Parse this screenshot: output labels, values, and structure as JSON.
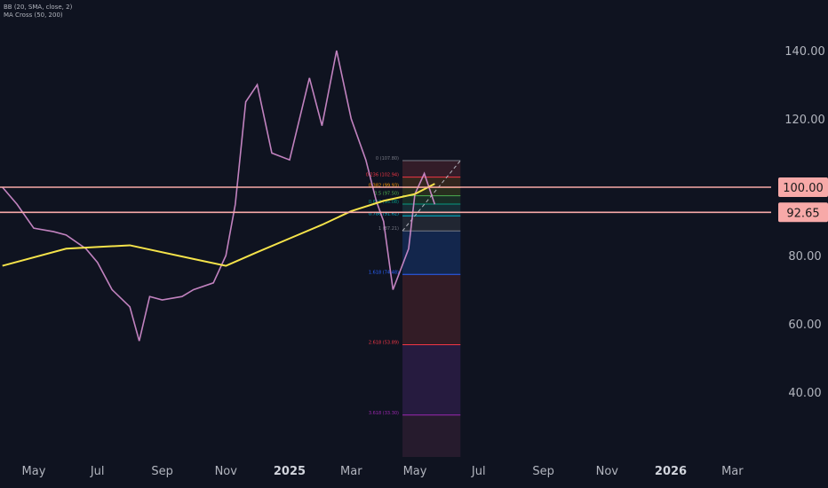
{
  "legend": {
    "bb": "BB (20, SMA, close, 2)",
    "ma": "MA Cross (50, 200)"
  },
  "chart_data": {
    "type": "candlestick",
    "y_axis": {
      "range": [
        24,
        158
      ],
      "ticks": [
        "140.00",
        "120.00",
        "80.00",
        "60.00",
        "40.00"
      ],
      "tick_values": [
        140,
        120,
        80,
        60,
        40
      ]
    },
    "x_axis": {
      "ticks": [
        "May",
        "Jul",
        "Sep",
        "Nov",
        "2025",
        "Mar",
        "May",
        "Jul",
        "Sep",
        "Nov",
        "2026",
        "Mar"
      ],
      "tick_dates": [
        "2024-05",
        "2024-07",
        "2024-09",
        "2024-11",
        "2025-01",
        "2025-03",
        "2025-05",
        "2025-07",
        "2025-09",
        "2025-11",
        "2026-01",
        "2026-03"
      ],
      "bold_ticks": [
        "2025",
        "2026"
      ]
    },
    "horizontal_levels": [
      {
        "label": "100.00",
        "value": 100.0,
        "color": "#f7a9a8"
      },
      {
        "label": "92.65",
        "value": 92.65,
        "color": "#f7a9a8"
      }
    ],
    "price_path": [
      [
        "2024-04",
        100
      ],
      [
        "2024-04-15",
        95
      ],
      [
        "2024-05",
        88
      ],
      [
        "2024-05-20",
        87
      ],
      [
        "2024-06",
        86
      ],
      [
        "2024-06-20",
        82
      ],
      [
        "2024-07",
        78
      ],
      [
        "2024-07-15",
        70
      ],
      [
        "2024-08",
        65
      ],
      [
        "2024-08-10",
        55
      ],
      [
        "2024-08-20",
        68
      ],
      [
        "2024-09",
        67
      ],
      [
        "2024-09-20",
        68
      ],
      [
        "2024-10",
        70
      ],
      [
        "2024-10-20",
        72
      ],
      [
        "2024-11",
        80
      ],
      [
        "2024-11-10",
        95
      ],
      [
        "2024-11-20",
        125
      ],
      [
        "2024-12",
        130
      ],
      [
        "2024-12-15",
        110
      ],
      [
        "2025-01",
        108
      ],
      [
        "2025-01-20",
        132
      ],
      [
        "2025-02",
        118
      ],
      [
        "2025-02-15",
        140
      ],
      [
        "2025-03",
        120
      ],
      [
        "2025-03-15",
        108
      ],
      [
        "2025-03-25",
        96
      ],
      [
        "2025-04",
        90
      ],
      [
        "2025-04-10",
        70
      ],
      [
        "2025-04-25",
        82
      ],
      [
        "2025-05",
        98
      ],
      [
        "2025-05-10",
        104
      ],
      [
        "2025-05-20",
        95
      ]
    ],
    "ma200_path": [
      [
        "2024-04",
        77
      ],
      [
        "2024-06",
        82
      ],
      [
        "2024-08",
        83
      ],
      [
        "2024-10",
        79
      ],
      [
        "2024-11",
        77
      ],
      [
        "2024-12",
        81
      ],
      [
        "2025-01",
        85
      ],
      [
        "2025-02",
        89
      ],
      [
        "2025-03",
        93
      ],
      [
        "2025-04",
        96
      ],
      [
        "2025-05",
        98
      ],
      [
        "2025-05-20",
        101
      ]
    ],
    "fibonacci": {
      "levels": [
        {
          "label": "0 (107.80)",
          "ratio": 0,
          "value": 107.8,
          "color": "#787b86"
        },
        {
          "label": "0.236 (102.94)",
          "ratio": 0.236,
          "value": 102.94,
          "color": "#f23645"
        },
        {
          "label": "0.382 (99.93)",
          "ratio": 0.382,
          "value": 99.93,
          "color": "#ff9800"
        },
        {
          "label": "0.5 (97.50)",
          "ratio": 0.5,
          "value": 97.5,
          "color": "#4caf50"
        },
        {
          "label": "0.618 (95.08)",
          "ratio": 0.618,
          "value": 95.08,
          "color": "#089981"
        },
        {
          "label": "0.786 (91.62)",
          "ratio": 0.786,
          "value": 91.62,
          "color": "#00bcd4"
        },
        {
          "label": "1 (87.21)",
          "ratio": 1,
          "value": 87.21,
          "color": "#787b86"
        },
        {
          "label": "1.618 (74.48)",
          "ratio": 1.618,
          "value": 74.48,
          "color": "#2962ff"
        },
        {
          "label": "2.618 (53.89)",
          "ratio": 2.618,
          "value": 53.89,
          "color": "#f23645"
        },
        {
          "label": "3.618 (33.30)",
          "ratio": 3.618,
          "value": 33.3,
          "color": "#9c27b0"
        }
      ],
      "start_date": "2025-05",
      "end_date": "2025-05-31"
    }
  }
}
